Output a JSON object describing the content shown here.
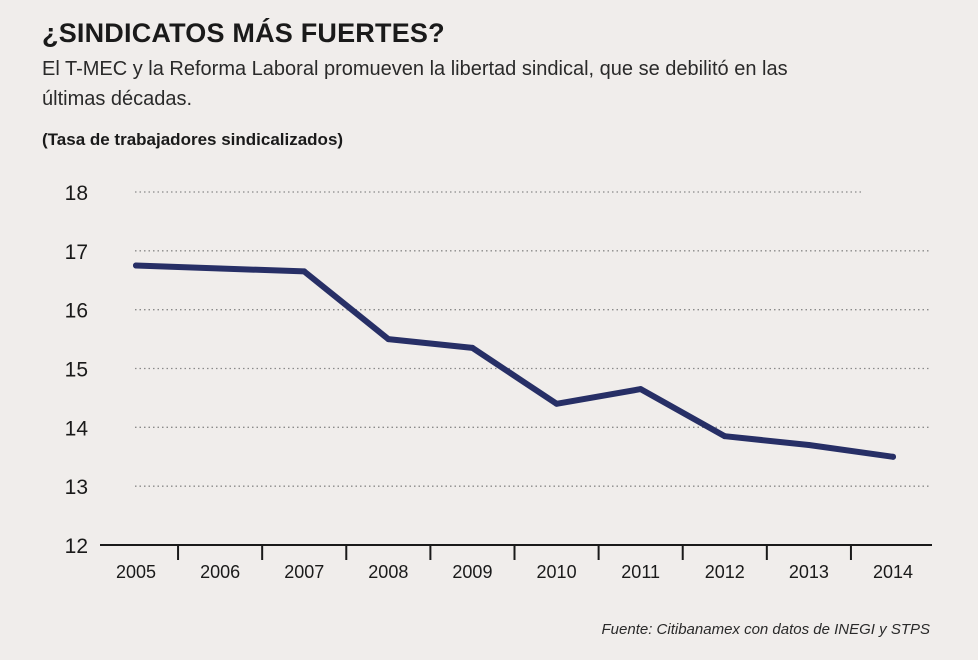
{
  "header": {
    "title": "¿SINDICATOS MÁS FUERTES?",
    "subtitle": "El T-MEC y la Reforma Laboral promueven la libertad sindical, que se debilitó en las últimas décadas."
  },
  "source": "Fuente: Citibanamex con datos de INEGI y STPS",
  "colors": {
    "line": "#272f66",
    "grid": "#8a8a8a",
    "axis": "#1a1a1a"
  },
  "chart_data": {
    "type": "line",
    "title": "¿SINDICATOS MÁS FUERTES?",
    "ylabel": "(Tasa de trabajadores sindicalizados)",
    "xlabel": "",
    "categories": [
      "2005",
      "2006",
      "2007",
      "2008",
      "2009",
      "2010",
      "2011",
      "2012",
      "2013",
      "2014"
    ],
    "values": [
      16.75,
      16.7,
      16.65,
      15.5,
      15.35,
      14.4,
      14.65,
      13.85,
      13.7,
      13.5
    ],
    "yticks": [
      "12",
      "13",
      "14",
      "15",
      "16",
      "17",
      "18"
    ],
    "ylim": [
      12,
      18
    ],
    "grid": "horizontal-dotted",
    "legend": "none"
  }
}
